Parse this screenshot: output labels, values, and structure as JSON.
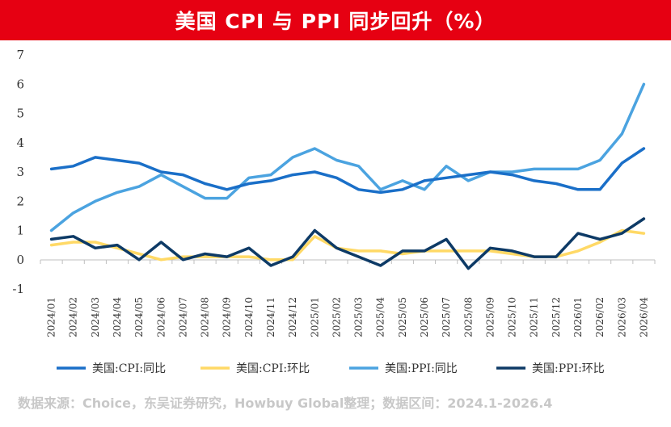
{
  "title": "美国 CPI 与 PPI 同步回升（%）",
  "source": "数据来源：Choice，东吴证券研究，Howbuy Global整理；数据区间：2024.1-2026.4",
  "chart_data": {
    "type": "line",
    "ylim": [
      -1,
      7
    ],
    "yticks": [
      -1,
      0,
      1,
      2,
      3,
      4,
      5,
      6,
      7
    ],
    "grid": false,
    "legend_position": "bottom",
    "categories": [
      "2024/01",
      "2024/02",
      "2024/03",
      "2024/04",
      "2024/05",
      "2024/06",
      "2024/07",
      "2024/08",
      "2024/09",
      "2024/10",
      "2024/11",
      "2024/12",
      "2025/01",
      "2025/02",
      "2025/03",
      "2025/04",
      "2025/05",
      "2025/06",
      "2025/07",
      "2025/08",
      "2025/09",
      "2025/10",
      "2025/11",
      "2025/12",
      "2026/01",
      "2026/02",
      "2026/03",
      "2026/04"
    ],
    "series": [
      {
        "name": "美国:CPI:同比",
        "color": "#1a6fc8",
        "values": [
          3.1,
          3.2,
          3.5,
          3.4,
          3.3,
          3.0,
          2.9,
          2.6,
          2.4,
          2.6,
          2.7,
          2.9,
          3.0,
          2.8,
          2.4,
          2.3,
          2.4,
          2.7,
          2.8,
          2.9,
          3.0,
          2.9,
          2.7,
          2.6,
          2.4,
          2.4,
          3.3,
          3.8
        ]
      },
      {
        "name": "美国:CPI:环比",
        "color": "#ffd966",
        "values": [
          0.5,
          0.6,
          0.6,
          0.4,
          0.2,
          0.0,
          0.1,
          0.1,
          0.1,
          0.1,
          0.0,
          0.0,
          0.8,
          0.4,
          0.3,
          0.3,
          0.2,
          0.3,
          0.3,
          0.3,
          0.3,
          0.2,
          0.1,
          0.1,
          0.3,
          0.6,
          1.0,
          0.9
        ]
      },
      {
        "name": "美国:PPI:同比",
        "color": "#4ba3e0",
        "values": [
          1.0,
          1.6,
          2.0,
          2.3,
          2.5,
          2.9,
          2.5,
          2.1,
          2.1,
          2.8,
          2.9,
          3.5,
          3.8,
          3.4,
          3.2,
          2.4,
          2.7,
          2.4,
          3.2,
          2.7,
          3.0,
          3.0,
          3.1,
          3.1,
          3.1,
          3.4,
          4.3,
          6.0
        ]
      },
      {
        "name": "美国:PPI:环比",
        "color": "#0d3a66",
        "values": [
          0.7,
          0.8,
          0.4,
          0.5,
          0.0,
          0.6,
          0.0,
          0.2,
          0.1,
          0.4,
          -0.2,
          0.1,
          1.0,
          0.4,
          0.1,
          -0.2,
          0.3,
          0.3,
          0.7,
          -0.3,
          0.4,
          0.3,
          0.1,
          0.1,
          0.9,
          0.7,
          0.9,
          1.4
        ]
      }
    ]
  }
}
